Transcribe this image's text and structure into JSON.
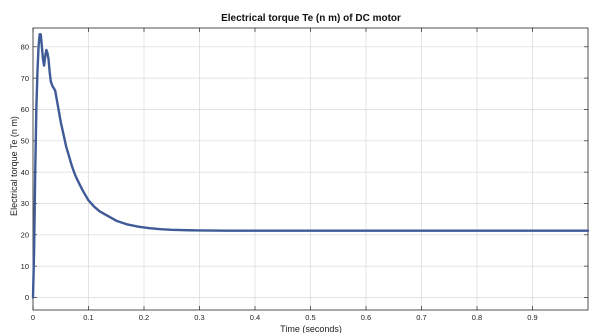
{
  "chart_data": {
    "type": "line",
    "title": "Electrical torque Te (n m) of DC motor",
    "xlabel": "Time (seconds)",
    "ylabel": "Electrical torque Te (n m)",
    "xlim": [
      0,
      1
    ],
    "ylim": [
      -4,
      86
    ],
    "xticks": [
      0,
      0.1,
      0.2,
      0.3,
      0.4,
      0.5,
      0.6,
      0.7,
      0.8,
      0.9
    ],
    "xtick_labels": [
      "0",
      "0.1",
      "0.2",
      "0.3",
      "0.4",
      "0.5",
      "0.6",
      "0.7",
      "0.8",
      "0.9"
    ],
    "yticks": [
      0,
      10,
      20,
      30,
      40,
      50,
      60,
      70,
      80
    ],
    "ytick_labels": [
      "0",
      "10",
      "20",
      "30",
      "40",
      "50",
      "60",
      "70",
      "80"
    ],
    "grid": true,
    "series": [
      {
        "color": "#3f5a96",
        "x": [
          0,
          0.002,
          0.004,
          0.006,
          0.008,
          0.01,
          0.012,
          0.014,
          0.016,
          0.018,
          0.02,
          0.022,
          0.024,
          0.026,
          0.028,
          0.03,
          0.032,
          0.035,
          0.04,
          0.045,
          0.05,
          0.055,
          0.06,
          0.065,
          0.07,
          0.075,
          0.08,
          0.09,
          0.1,
          0.11,
          0.12,
          0.13,
          0.14,
          0.15,
          0.17,
          0.19,
          0.21,
          0.23,
          0.25,
          0.28,
          0.3,
          0.35,
          0.4,
          0.5,
          0.6,
          0.7,
          0.8,
          0.9,
          1.0
        ],
        "y": [
          0,
          15,
          40,
          60,
          72,
          80,
          84,
          84,
          80,
          76,
          74,
          77,
          79,
          78,
          76,
          72,
          69,
          67.5,
          66,
          61,
          56,
          52,
          48,
          45,
          42,
          39.5,
          37.5,
          34,
          31,
          29,
          27.5,
          26.5,
          25.5,
          24.5,
          23.3,
          22.6,
          22.1,
          21.8,
          21.6,
          21.45,
          21.4,
          21.3,
          21.3,
          21.3,
          21.3,
          21.3,
          21.3,
          21.3,
          21.3
        ]
      }
    ]
  }
}
